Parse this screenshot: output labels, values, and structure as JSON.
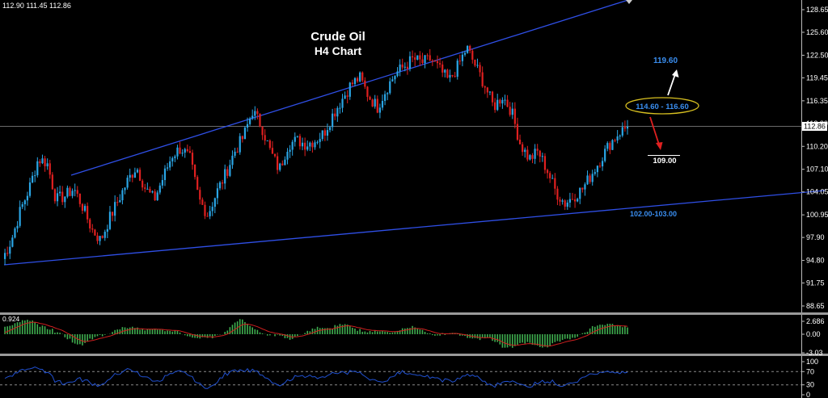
{
  "header": {
    "ohlc_text": "112.90 111.45 112.86"
  },
  "chart_title": {
    "line1": "Crude Oil",
    "line2": "H4 Chart"
  },
  "annotations": {
    "target_high": "119.60",
    "zone": "114.60 - 116.60",
    "target_low": "109.00",
    "support_zone": "102.00-103.00"
  },
  "price_axis": {
    "ticks": [
      "128.65",
      "125.60",
      "122.50",
      "119.45",
      "116.35",
      "113.30",
      "110.20",
      "107.10",
      "104.05",
      "100.95",
      "97.90",
      "94.80",
      "91.75",
      "88.65"
    ],
    "current_price": "112.86"
  },
  "macd_axis": {
    "ticks": [
      "2.686",
      "0.00",
      "-3.03"
    ],
    "top_label": "0.924"
  },
  "rsi_axis": {
    "ticks": [
      "100",
      "70",
      "30",
      "0"
    ]
  },
  "colors": {
    "bull": "#2aa6e6",
    "bear": "#e02020",
    "trendline": "#2f4fe6",
    "zone_ellipse": "#d8c020",
    "macd_hist": "#3fae4f",
    "macd_signal": "#d02020",
    "rsi_line": "#2050d0",
    "label_blue": "#3a8ef0",
    "arrow_up": "#ffffff",
    "arrow_down": "#e02020"
  },
  "chart_data": {
    "type": "candlestick",
    "symbol": "Crude Oil",
    "timeframe": "H4",
    "ylim": [
      88.65,
      128.65
    ],
    "close_path": [
      95.0,
      97.5,
      101.5,
      104.5,
      108.5,
      108.0,
      103.0,
      103.5,
      104.5,
      102.0,
      99.0,
      97.5,
      100.5,
      103.0,
      105.5,
      107.5,
      104.5,
      103.0,
      106.0,
      109.0,
      110.0,
      108.5,
      103.0,
      101.0,
      104.0,
      106.5,
      109.5,
      111.5,
      115.0,
      113.0,
      109.5,
      107.0,
      110.5,
      111.0,
      110.5,
      111.0,
      112.0,
      114.5,
      116.5,
      118.5,
      119.5,
      117.0,
      115.5,
      118.0,
      120.0,
      121.0,
      122.0,
      121.5,
      122.0,
      120.5,
      119.0,
      121.0,
      123.5,
      121.0,
      118.5,
      115.5,
      117.0,
      115.0,
      110.5,
      108.5,
      109.5,
      107.0,
      104.0,
      102.5,
      103.5,
      104.5,
      106.5,
      108.5,
      110.5,
      112.0,
      112.86
    ],
    "upper_trendline": [
      [
        88,
        106.8
      ],
      [
        780,
        128.9
      ]
    ],
    "lower_trendline": [
      [
        5,
        94.4
      ],
      [
        1020,
        104.1
      ]
    ],
    "levels": [
      119.6,
      114.6,
      116.6,
      109.0,
      102.0,
      103.0
    ],
    "indicators": [
      "MACD",
      "RSI"
    ]
  }
}
